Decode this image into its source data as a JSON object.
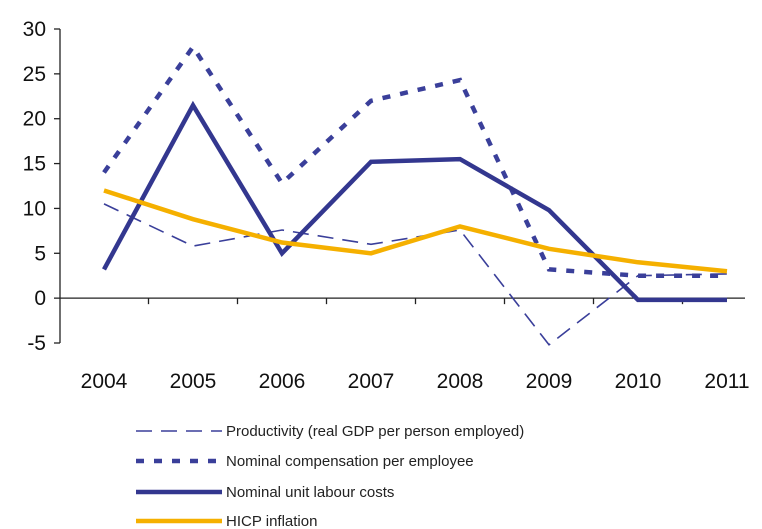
{
  "chart_data": {
    "type": "line",
    "title": "",
    "xlabel": "",
    "ylabel": "",
    "categories": [
      "2004",
      "2005",
      "2006",
      "2007",
      "2008",
      "2009",
      "2010",
      "2011"
    ],
    "ylim": [
      -5,
      30
    ],
    "yticks": [
      -5,
      0,
      5,
      10,
      15,
      20,
      25,
      30
    ],
    "grid": false,
    "legend_position": "bottom",
    "series": [
      {
        "name": "Productivity (real GDP per person employed)",
        "values": [
          10.5,
          5.8,
          7.6,
          6.0,
          7.6,
          -5.2,
          2.5,
          2.7
        ],
        "color": "#3a3f9a",
        "style": "long-dash"
      },
      {
        "name": "Nominal compensation per employee",
        "values": [
          14.0,
          28.0,
          12.8,
          22.0,
          24.3,
          3.2,
          2.5,
          2.5
        ],
        "color": "#3a3f9a",
        "style": "short-dash"
      },
      {
        "name": "Nominal unit labour costs",
        "values": [
          3.2,
          21.5,
          5.0,
          15.2,
          15.5,
          9.8,
          -0.2,
          -0.2
        ],
        "color": "#33378f",
        "style": "solid-thick"
      },
      {
        "name": "HICP inflation",
        "values": [
          12.0,
          8.8,
          6.2,
          5.0,
          8.0,
          5.5,
          4.0,
          3.0
        ],
        "color": "#f5b000",
        "style": "solid-thick"
      }
    ]
  }
}
